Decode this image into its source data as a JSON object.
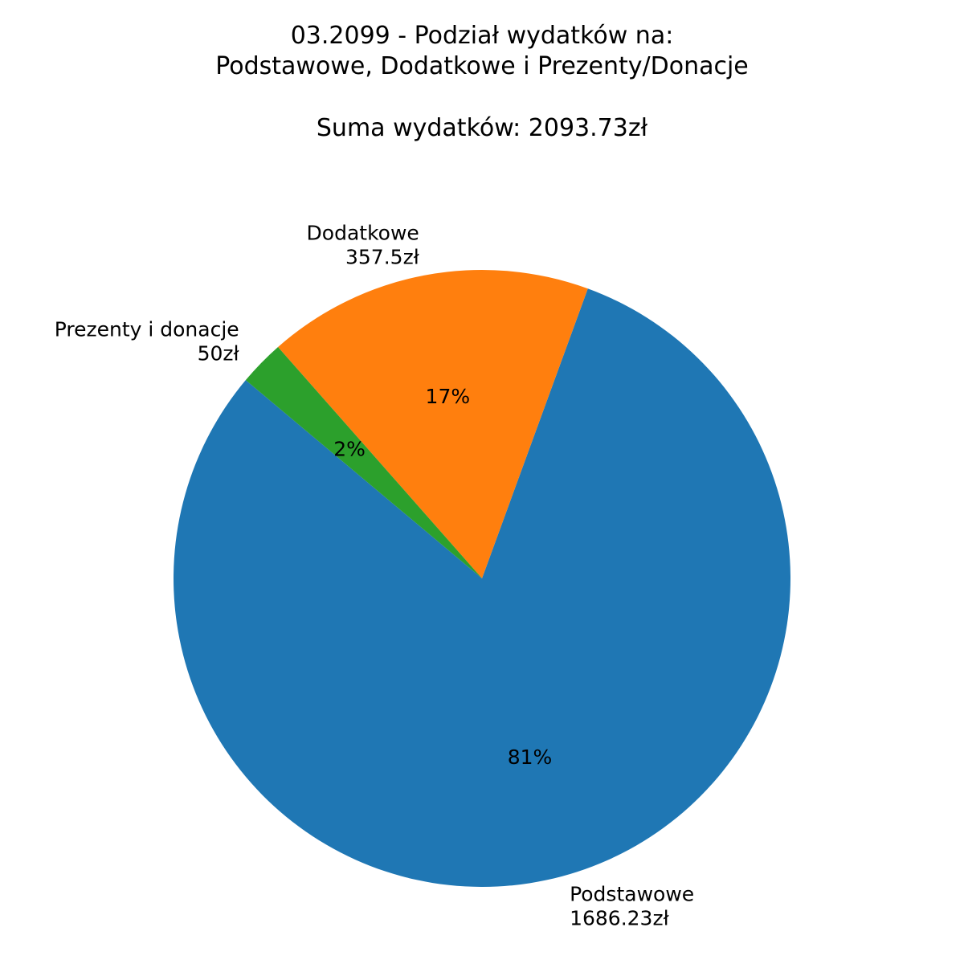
{
  "title_lines": [
    "03.2099 - Podział wydatków na:",
    "Podstawowe, Dodatkowe i Prezenty/Donacje",
    "Suma wydatków: 2093.73zł"
  ],
  "chart_data": {
    "type": "pie",
    "start_angle_deg": 140,
    "direction": "counterclockwise",
    "slices": [
      {
        "label": "Podstawowe",
        "value": 1686.23,
        "value_label": "1686.23zł",
        "pct_label": "81%",
        "color": "#1f77b4"
      },
      {
        "label": "Dodatkowe",
        "value": 357.5,
        "value_label": "357.5zł",
        "pct_label": "17%",
        "color": "#ff7f0e"
      },
      {
        "label": "Prezenty i donacje",
        "value": 50,
        "value_label": "50zł",
        "pct_label": "2%",
        "color": "#2ca02c"
      }
    ]
  }
}
